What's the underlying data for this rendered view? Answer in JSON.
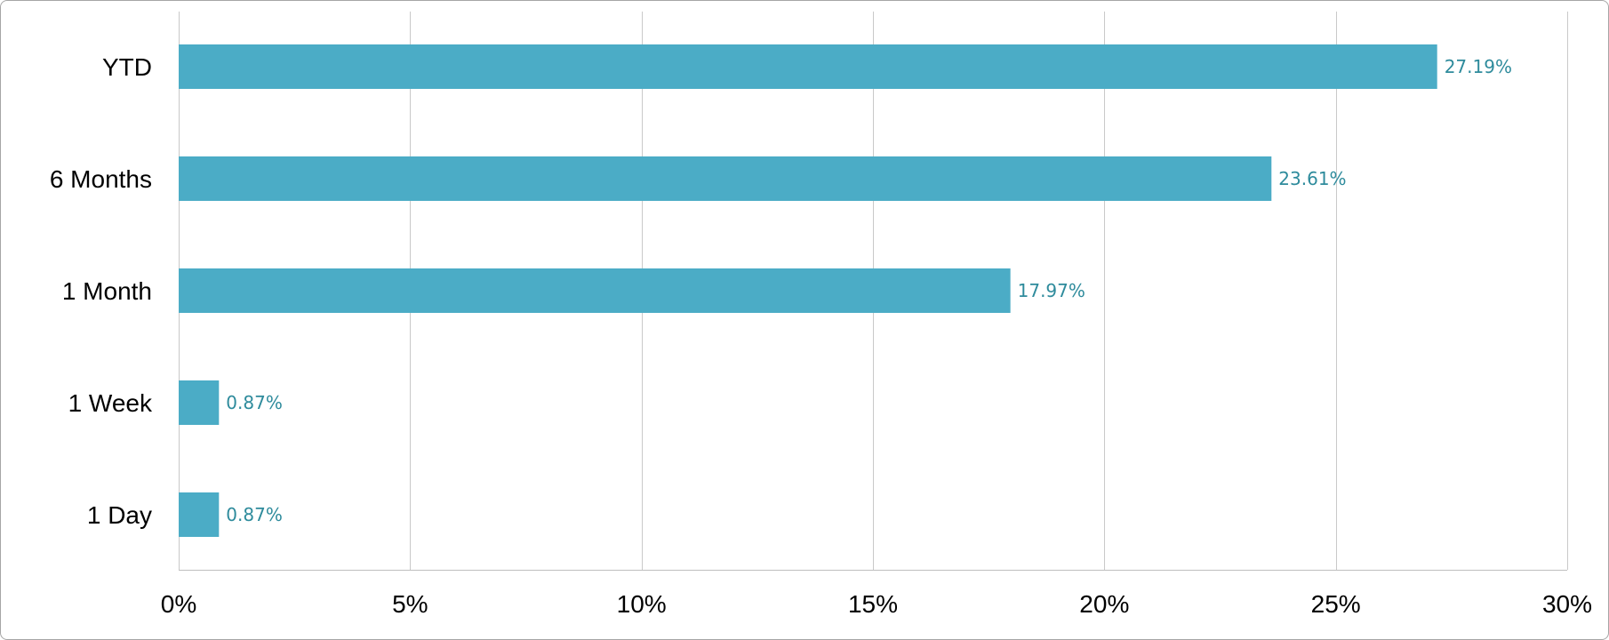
{
  "chart_data": {
    "type": "bar",
    "orientation": "horizontal",
    "categories": [
      "YTD",
      "6 Months",
      "1 Month",
      "1 Week",
      "1 Day"
    ],
    "values": [
      27.19,
      23.61,
      17.97,
      0.87,
      0.87
    ],
    "data_labels": [
      "27.19%",
      "23.61%",
      "17.97%",
      "0.87%",
      "0.87%"
    ],
    "x_ticks": [
      "0%",
      "5%",
      "10%",
      "15%",
      "20%",
      "25%",
      "30%"
    ],
    "x_tick_values": [
      0,
      5,
      10,
      15,
      20,
      25,
      30
    ],
    "xlim": [
      0,
      30
    ],
    "xlabel": "",
    "ylabel": "",
    "title": "",
    "grid": "vertical",
    "legend": "none",
    "colors": {
      "bar": "#4bacc6",
      "data_label": "#2e8b9c",
      "gridline": "#c9c9c9"
    }
  }
}
